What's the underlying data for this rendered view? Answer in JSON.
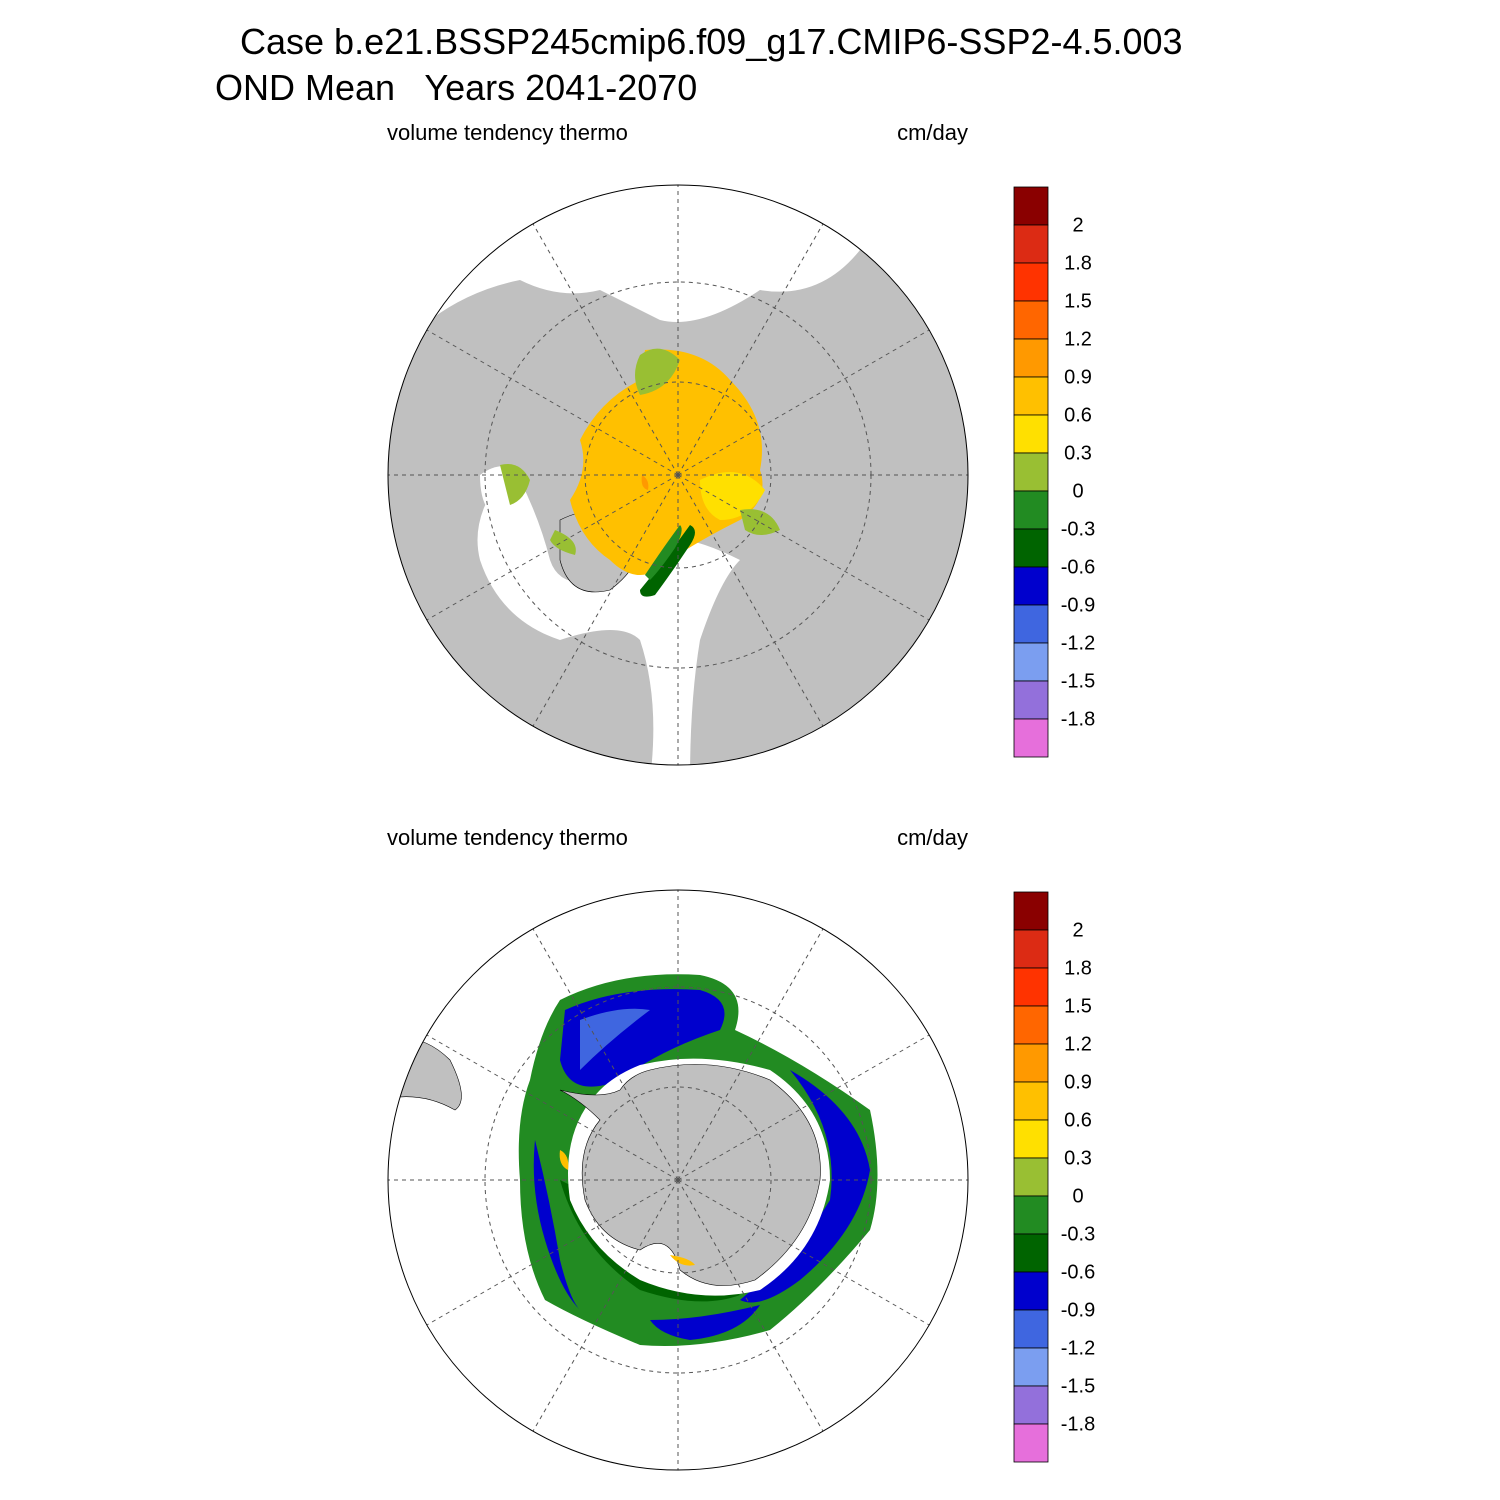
{
  "header": {
    "title_line1": "Case b.e21.BSSP245cmip6.f09_g17.CMIP6-SSP2-4.5.003",
    "title_line2": "OND Mean   Years 2041-2070"
  },
  "panels": [
    {
      "left_label": "volume tendency thermo",
      "right_label": "cm/day"
    },
    {
      "left_label": "volume tendency thermo",
      "right_label": "cm/day"
    }
  ],
  "colorbar": {
    "labels": [
      "2",
      "1.8",
      "1.5",
      "1.2",
      "0.9",
      "0.6",
      "0.3",
      "0",
      "-0.3",
      "-0.6",
      "-0.9",
      "-1.2",
      "-1.5",
      "-1.8"
    ],
    "colors": [
      "#8a0000",
      "#dc2b14",
      "#ff3300",
      "#ff6600",
      "#ff9900",
      "#ffc000",
      "#ffe000",
      "#99bf33",
      "#228b22",
      "#006400",
      "#0000cd",
      "#3f66e0",
      "#7b9ef0",
      "#9370db",
      "#e66fdb"
    ]
  }
}
